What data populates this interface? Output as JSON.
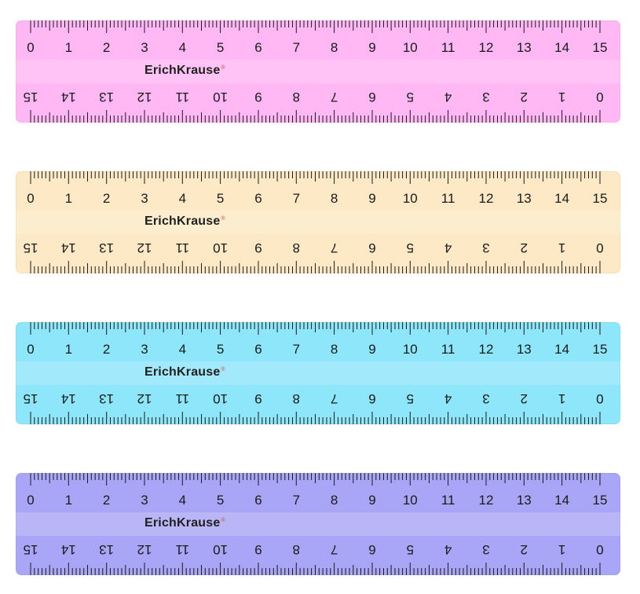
{
  "brand": "ErichKrause",
  "registered_mark": "®",
  "scale_labels": [
    "0",
    "1",
    "2",
    "3",
    "4",
    "5",
    "6",
    "7",
    "8",
    "9",
    "10",
    "11",
    "12",
    "13",
    "14",
    "15"
  ],
  "rulers": [
    {
      "color": "pink",
      "fill": "#ffb8f3"
    },
    {
      "color": "yellow",
      "fill": "#fde9c5"
    },
    {
      "color": "blue",
      "fill": "#8ee6fb"
    },
    {
      "color": "purple",
      "fill": "#aaa6f7"
    }
  ]
}
